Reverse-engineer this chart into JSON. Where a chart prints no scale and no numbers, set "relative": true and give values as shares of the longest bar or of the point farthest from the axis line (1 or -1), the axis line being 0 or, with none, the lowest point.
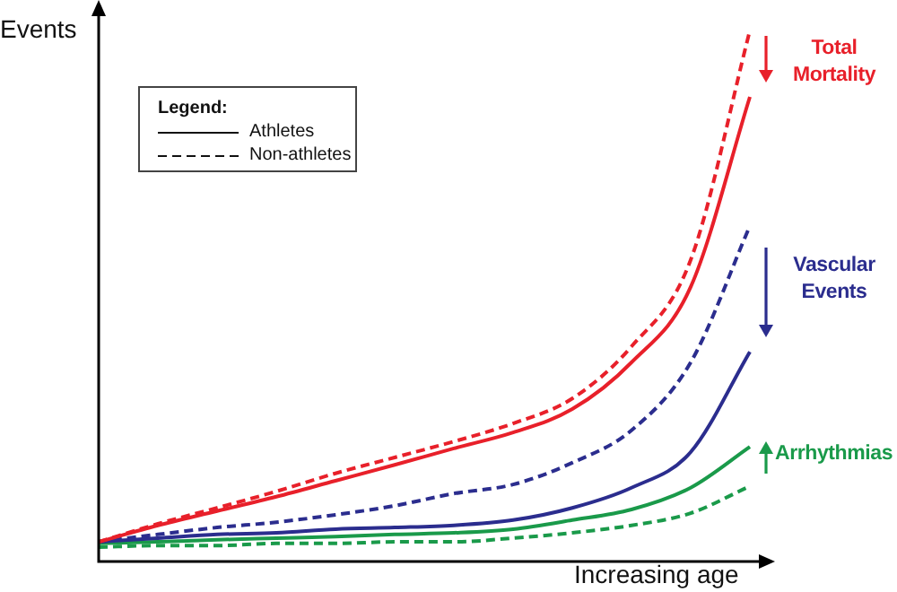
{
  "chart_data": {
    "type": "line",
    "relative": true,
    "xlabel": "Increasing age",
    "ylabel": "Events",
    "legend": false,
    "marker": "none",
    "categories": [
      null,
      null,
      null,
      null,
      null,
      null,
      null,
      null,
      null,
      null,
      null,
      null
    ],
    "series": [
      {
        "color": "#e8202a",
        "line_style": "solid",
        "values": [
          0.037,
          0.068,
          0.095,
          0.122,
          0.152,
          0.182,
          0.213,
          0.243,
          0.287,
          0.375,
          0.517,
          0.875
        ]
      },
      {
        "color": "#e8202a",
        "line_style": "dashed",
        "values": [
          0.037,
          0.071,
          0.101,
          0.132,
          0.166,
          0.196,
          0.226,
          0.26,
          0.307,
          0.405,
          0.568,
          1.0
        ]
      },
      {
        "color": "#2b2d8e",
        "line_style": "solid",
        "values": [
          0.037,
          0.044,
          0.051,
          0.054,
          0.061,
          0.064,
          0.068,
          0.078,
          0.101,
          0.139,
          0.206,
          0.395
        ]
      },
      {
        "color": "#2b2d8e",
        "line_style": "dashed",
        "values": [
          0.037,
          0.051,
          0.064,
          0.074,
          0.088,
          0.105,
          0.128,
          0.145,
          0.186,
          0.247,
          0.375,
          0.632
        ]
      },
      {
        "color": "#1a9a4a",
        "line_style": "solid",
        "values": [
          0.034,
          0.037,
          0.041,
          0.044,
          0.047,
          0.051,
          0.054,
          0.061,
          0.078,
          0.098,
          0.139,
          0.216
        ]
      },
      {
        "color": "#1a9a4a",
        "line_style": "dashed",
        "values": [
          0.027,
          0.03,
          0.03,
          0.034,
          0.034,
          0.037,
          0.037,
          0.044,
          0.054,
          0.068,
          0.091,
          0.142
        ]
      }
    ],
    "annotations": [
      "Legend:",
      "Athletes",
      "Non-athletes",
      "Total Mortality",
      "Vascular Events",
      "Arrhythmias"
    ]
  }
}
